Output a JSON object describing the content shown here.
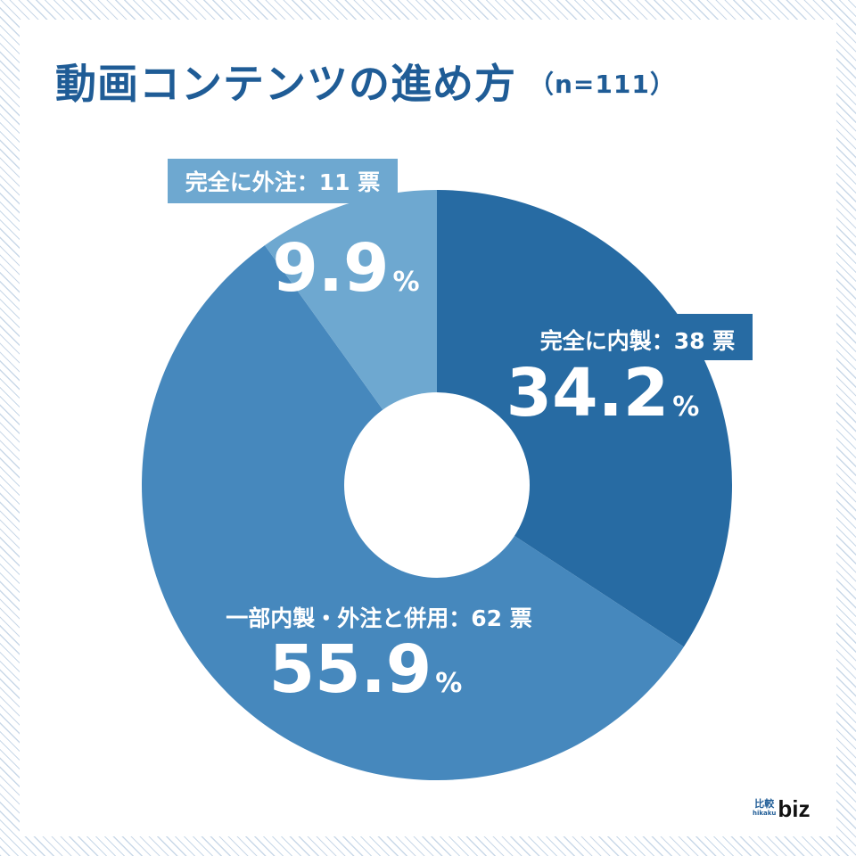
{
  "title": {
    "main": "動画コンテンツの進め方",
    "sample": "（n=111）"
  },
  "logo": {
    "kanji": "比較",
    "romaji": "hikaku",
    "brand": "biz"
  },
  "chart_data": {
    "type": "pie",
    "variant": "donut",
    "title": "動画コンテンツの進め方",
    "n": 111,
    "unit": "票",
    "slices": [
      {
        "name": "完全に内製",
        "label": "完全に内製：38 票",
        "votes": 38,
        "percent": 34.2,
        "percent_text": "34.2",
        "color": "#276ba3"
      },
      {
        "name": "一部内製・外注と併用",
        "label": "一部内製・外注と併用：62 票",
        "votes": 62,
        "percent": 55.9,
        "percent_text": "55.9",
        "color": "#4688bd"
      },
      {
        "name": "完全に外注",
        "label": "完全に外注：11 票",
        "votes": 11,
        "percent": 9.9,
        "percent_text": "9.9",
        "color": "#6ea8d0"
      }
    ],
    "percent_sign": "%"
  }
}
